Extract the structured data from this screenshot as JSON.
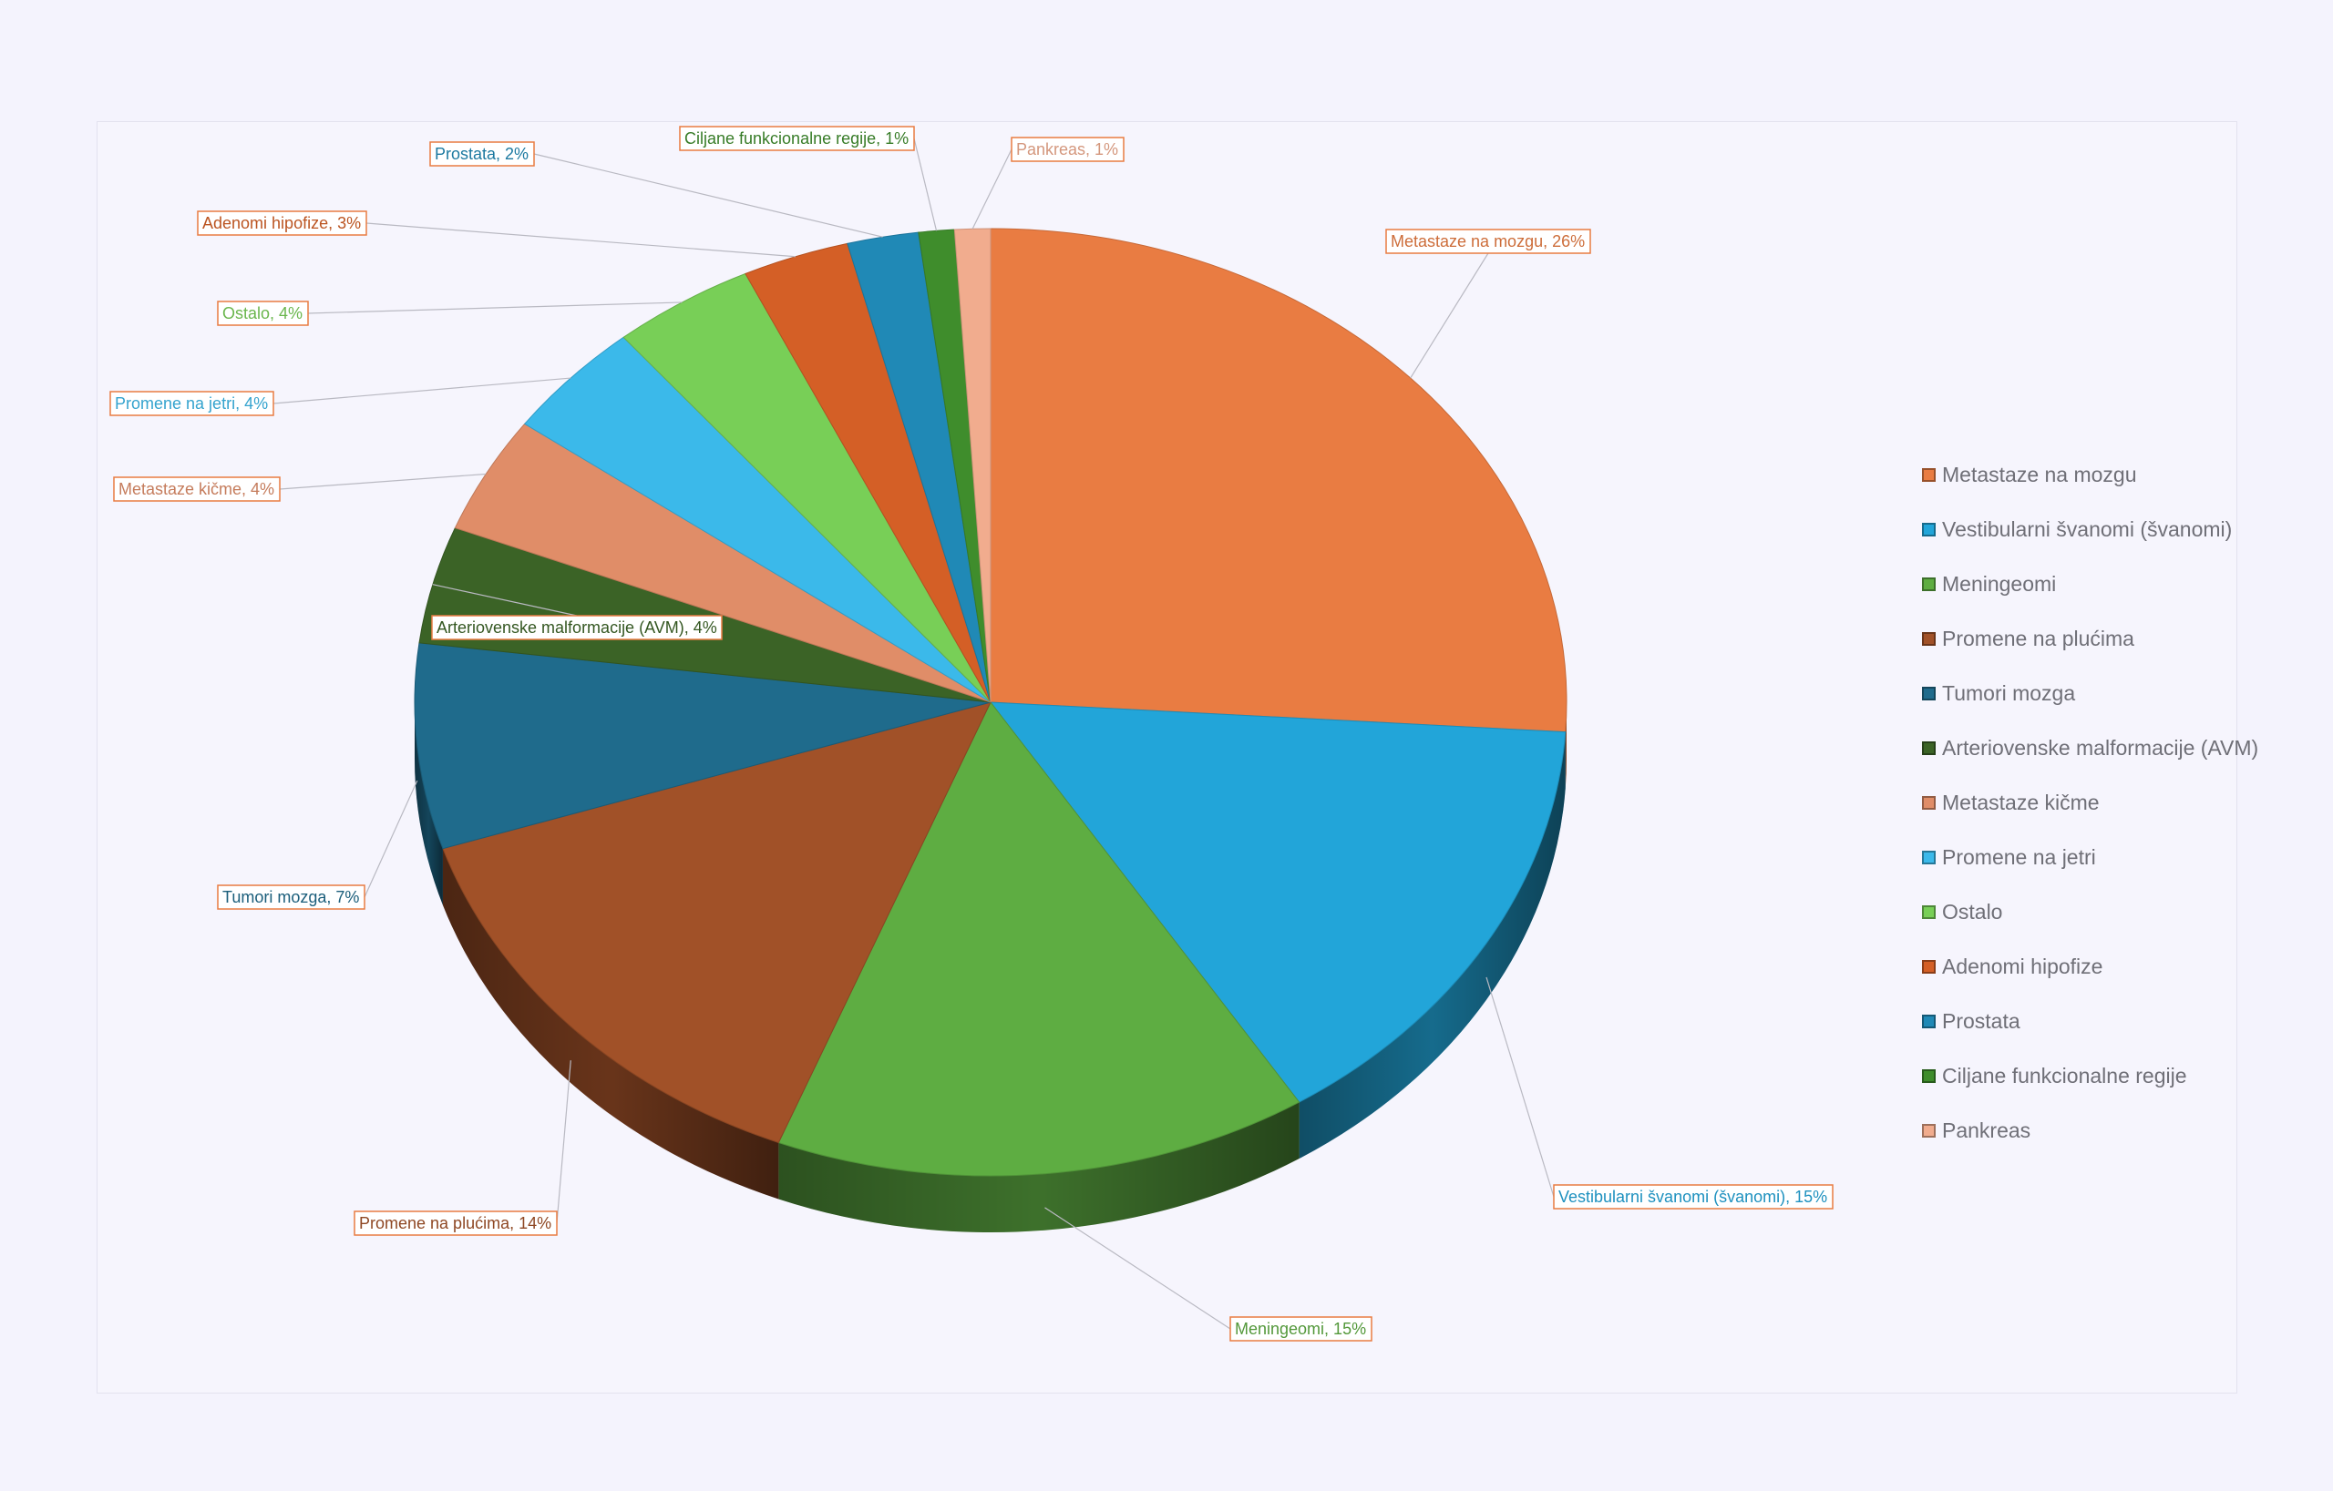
{
  "chart_data": {
    "type": "pie",
    "title": "",
    "data_label_format": "{name}, {percent}",
    "legend_position": "right",
    "slices": [
      {
        "name": "Metastaze na mozgu",
        "percent": "26%",
        "value": 26,
        "color": "#e97c42"
      },
      {
        "name": "Vestibularni švanomi (švanomi)",
        "percent": "15%",
        "value": 15,
        "color": "#22a5d9"
      },
      {
        "name": "Meningeomi",
        "percent": "15%",
        "value": 15,
        "color": "#5ead42"
      },
      {
        "name": "Promene na plućima",
        "percent": "14%",
        "value": 14,
        "color": "#a15128"
      },
      {
        "name": "Tumori mozga",
        "percent": "7%",
        "value": 7,
        "color": "#1f6b8c"
      },
      {
        "name": "Arteriovenske malformacije (AVM)",
        "percent": "4%",
        "value": 4,
        "color": "#3b6326"
      },
      {
        "name": "Metastaze kičme",
        "percent": "4%",
        "value": 4,
        "color": "#e08d68"
      },
      {
        "name": "Promene na jetri",
        "percent": "4%",
        "value": 4,
        "color": "#3bb9ea"
      },
      {
        "name": "Ostalo",
        "percent": "4%",
        "value": 4,
        "color": "#78cf57"
      },
      {
        "name": "Adenomi hipofize",
        "percent": "3%",
        "value": 3,
        "color": "#d45f26"
      },
      {
        "name": "Prostata",
        "percent": "2%",
        "value": 2,
        "color": "#2089b6"
      },
      {
        "name": "Ciljane funkcionalne regije",
        "percent": "1%",
        "value": 1,
        "color": "#3f8d2c"
      },
      {
        "name": "Pankreas",
        "percent": "1%",
        "value": 1,
        "color": "#f1ac8e"
      }
    ]
  }
}
